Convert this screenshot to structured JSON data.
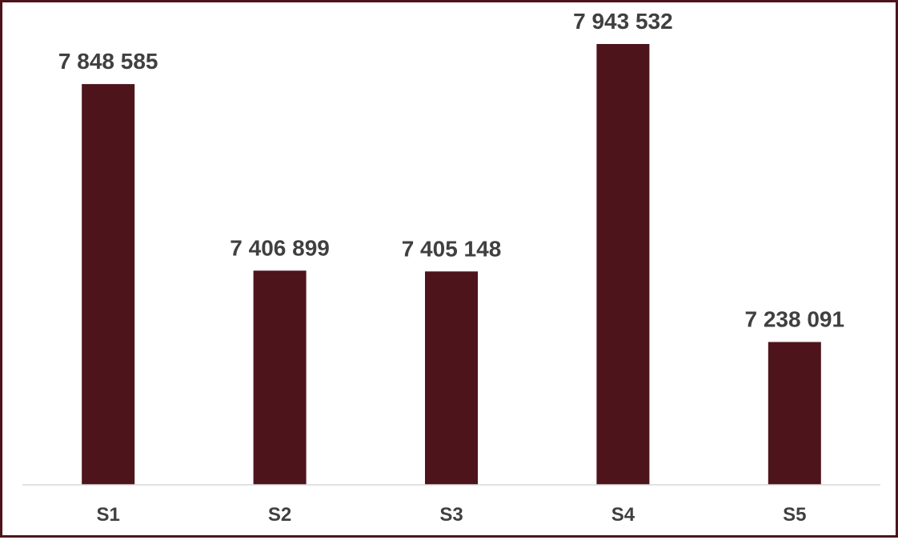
{
  "chart_data": {
    "type": "bar",
    "categories": [
      "S1",
      "S2",
      "S3",
      "S4",
      "S5"
    ],
    "values": [
      7848585,
      7406899,
      7405148,
      7943532,
      7238091
    ],
    "data_labels": [
      "7 848 585",
      "7 406 899",
      "7 405 148",
      "7 943 532",
      "7 238 091"
    ],
    "title": "",
    "xlabel": "",
    "ylabel": "",
    "ylim": [
      6900000,
      8000000
    ],
    "grid": false,
    "legend": "none",
    "bar_color": "#4d141c",
    "axis_color": "#d9d9d9",
    "frame_color": "#4d141c",
    "label_color": "#404040"
  }
}
